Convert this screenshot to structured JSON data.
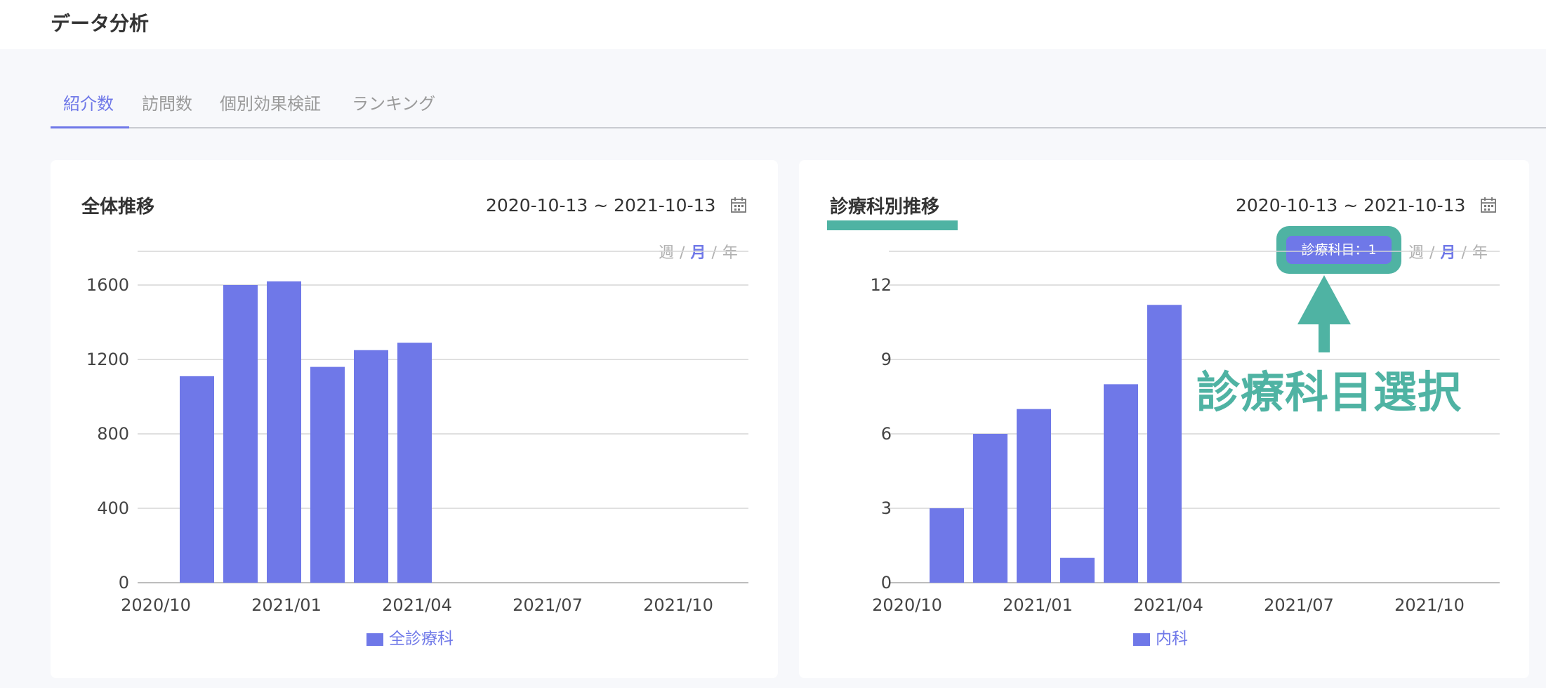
{
  "header": {
    "title": "データ分析"
  },
  "tabs": [
    {
      "label": "紹介数",
      "active": true
    },
    {
      "label": "訪問数",
      "active": false
    },
    {
      "label": "個別効果検証",
      "active": false
    },
    {
      "label": "ランキング",
      "active": false
    }
  ],
  "colors": {
    "accent": "#6f78e8",
    "annotation": "#4fb3a3",
    "grid": "#d6d6d6"
  },
  "cards": {
    "overall": {
      "title": "全体推移",
      "date_range": "2020-10-13 ~ 2021-10-13",
      "calendar_icon": "calendar-icon",
      "period": {
        "week": "週",
        "sep": "/",
        "month": "月",
        "year": "年",
        "selected": "月"
      }
    },
    "department": {
      "title": "診療科別推移",
      "date_range": "2020-10-13 ~ 2021-10-13",
      "calendar_icon": "calendar-icon",
      "department_chip": "診療科目：1",
      "annotation": "診療科目選択",
      "period": {
        "week": "週",
        "sep": "/",
        "month": "月",
        "year": "年",
        "selected": "月"
      }
    }
  },
  "chart_data": [
    {
      "type": "bar",
      "x_tick_labels": [
        "2020/10",
        "2021/01",
        "2021/04",
        "2021/07",
        "2021/10"
      ],
      "categories": [
        "2020/10",
        "2020/11",
        "2020/12",
        "2021/01",
        "2021/02",
        "2021/03"
      ],
      "series": [
        {
          "name": "全診療科",
          "values": [
            1110,
            1600,
            1620,
            1160,
            1250,
            1290
          ]
        }
      ],
      "y_ticks": [
        0,
        400,
        800,
        1200,
        1600
      ],
      "ylim": [
        0,
        1600
      ],
      "grid": true,
      "legend": "bottom"
    },
    {
      "type": "bar",
      "x_tick_labels": [
        "2020/10",
        "2021/01",
        "2021/04",
        "2021/07",
        "2021/10"
      ],
      "categories": [
        "2020/10",
        "2020/11",
        "2020/12",
        "2021/01",
        "2021/02",
        "2021/03"
      ],
      "series": [
        {
          "name": "内科",
          "values": [
            3,
            6,
            7,
            1,
            8,
            11.2
          ]
        }
      ],
      "y_ticks": [
        0,
        3,
        6,
        9,
        12
      ],
      "ylim": [
        0,
        12
      ],
      "grid": true,
      "legend": "bottom"
    }
  ]
}
